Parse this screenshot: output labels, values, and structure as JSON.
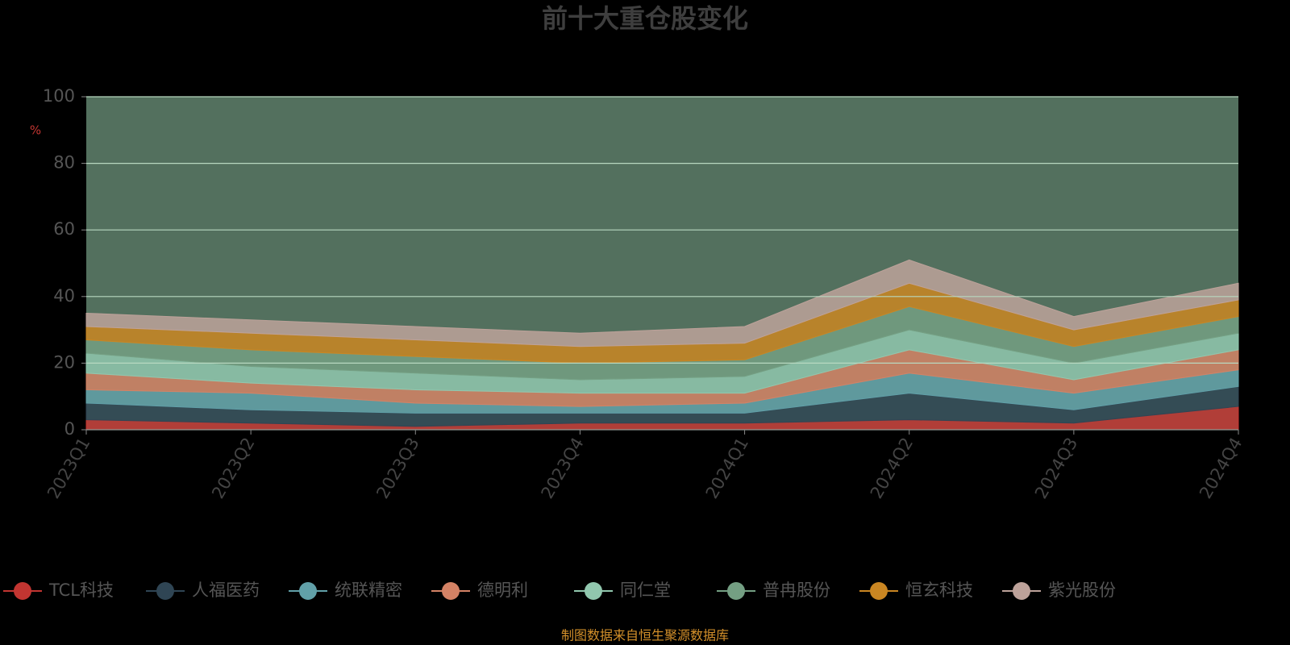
{
  "chart_data": {
    "type": "stacked-area",
    "title": "前十大重仓股变化",
    "y_label": "%",
    "source": "制图数据来自恒生聚源数据库",
    "categories": [
      "2023Q1",
      "2023Q2",
      "2023Q3",
      "2023Q4",
      "2024Q1",
      "2024Q2",
      "2024Q3",
      "2024Q4"
    ],
    "ylim": [
      0,
      100
    ],
    "yticks": [
      0,
      20,
      40,
      60,
      80,
      100
    ],
    "grid": true,
    "series": [
      {
        "name": "TCL科技",
        "color": "#c23531",
        "values": [
          3,
          2,
          1,
          2,
          2,
          3,
          2,
          7
        ]
      },
      {
        "name": "人福医药",
        "color": "#2f4554",
        "values": [
          5,
          4,
          4,
          3,
          3,
          8,
          4,
          6
        ]
      },
      {
        "name": "统联精密",
        "color": "#61a0a8",
        "values": [
          4,
          5,
          3,
          2,
          3,
          6,
          5,
          5
        ]
      },
      {
        "name": "德明利",
        "color": "#d48265",
        "values": [
          5,
          3,
          4,
          4,
          3,
          7,
          4,
          6
        ]
      },
      {
        "name": "同仁堂",
        "color": "#91c7ae",
        "values": [
          6,
          5,
          5,
          4,
          5,
          6,
          5,
          5
        ]
      },
      {
        "name": "普冉股份",
        "color": "#749f83",
        "values": [
          4,
          5,
          5,
          5,
          5,
          7,
          5,
          5
        ]
      },
      {
        "name": "恒玄科技",
        "color": "#ca8622",
        "values": [
          4,
          5,
          5,
          5,
          5,
          7,
          5,
          5
        ]
      },
      {
        "name": "紫光股份",
        "color": "#bda29a",
        "values": [
          4,
          4,
          4,
          4,
          5,
          7,
          4,
          5
        ]
      }
    ]
  }
}
